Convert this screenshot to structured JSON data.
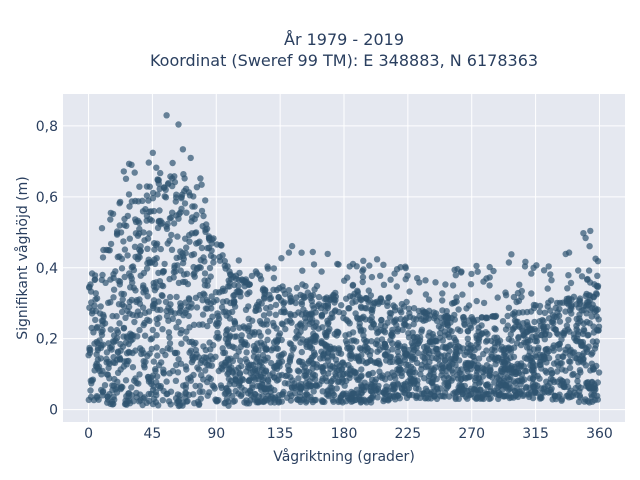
{
  "chart_data": {
    "type": "scatter",
    "title_line1": "År 1979 - 2019",
    "title_line2": "Koordinat (Sweref 99 TM): E 348883, N 6178363",
    "xlabel": "Vågriktning (grader)",
    "ylabel": "Signifikant våghöjd (m)",
    "xlim": [
      -18,
      378
    ],
    "ylim": [
      -0.035,
      0.89
    ],
    "x_ticks": [
      0,
      45,
      90,
      135,
      180,
      225,
      270,
      315,
      360
    ],
    "y_ticks": [
      0,
      0.2,
      0.4,
      0.6,
      0.8
    ],
    "y_tick_labels": [
      "0",
      "0,2",
      "0,4",
      "0,6",
      "0,8"
    ],
    "grid": true,
    "marker_color": "#2f5470",
    "plot_bg": "#e5e8f0",
    "envelope": [
      {
        "x": 0,
        "lower": 0.02,
        "upper": 0.34,
        "max": 0.36
      },
      {
        "x": 10,
        "lower": 0.02,
        "upper": 0.42,
        "max": 0.54
      },
      {
        "x": 20,
        "lower": 0.01,
        "upper": 0.5,
        "max": 0.6
      },
      {
        "x": 30,
        "lower": 0.01,
        "upper": 0.56,
        "max": 0.78
      },
      {
        "x": 40,
        "lower": 0.01,
        "upper": 0.6,
        "max": 0.79
      },
      {
        "x": 50,
        "lower": 0.01,
        "upper": 0.62,
        "max": 0.83
      },
      {
        "x": 60,
        "lower": 0.01,
        "upper": 0.64,
        "max": 0.85
      },
      {
        "x": 70,
        "lower": 0.01,
        "upper": 0.62,
        "max": 0.75
      },
      {
        "x": 80,
        "lower": 0.01,
        "upper": 0.52,
        "max": 0.66
      },
      {
        "x": 90,
        "lower": 0.01,
        "upper": 0.44,
        "max": 0.48
      },
      {
        "x": 100,
        "lower": 0.01,
        "upper": 0.38,
        "max": 0.45
      },
      {
        "x": 120,
        "lower": 0.02,
        "upper": 0.34,
        "max": 0.42
      },
      {
        "x": 140,
        "lower": 0.02,
        "upper": 0.32,
        "max": 0.47
      },
      {
        "x": 160,
        "lower": 0.02,
        "upper": 0.32,
        "max": 0.48
      },
      {
        "x": 180,
        "lower": 0.02,
        "upper": 0.32,
        "max": 0.42
      },
      {
        "x": 200,
        "lower": 0.02,
        "upper": 0.31,
        "max": 0.45
      },
      {
        "x": 220,
        "lower": 0.03,
        "upper": 0.29,
        "max": 0.42
      },
      {
        "x": 240,
        "lower": 0.03,
        "upper": 0.27,
        "max": 0.38
      },
      {
        "x": 260,
        "lower": 0.03,
        "upper": 0.26,
        "max": 0.41
      },
      {
        "x": 280,
        "lower": 0.03,
        "upper": 0.26,
        "max": 0.42
      },
      {
        "x": 300,
        "lower": 0.03,
        "upper": 0.27,
        "max": 0.46
      },
      {
        "x": 320,
        "lower": 0.03,
        "upper": 0.28,
        "max": 0.42
      },
      {
        "x": 340,
        "lower": 0.02,
        "upper": 0.31,
        "max": 0.46
      },
      {
        "x": 355,
        "lower": 0.02,
        "upper": 0.34,
        "max": 0.53
      },
      {
        "x": 360,
        "lower": 0.02,
        "upper": 0.35,
        "max": 0.53
      }
    ]
  }
}
